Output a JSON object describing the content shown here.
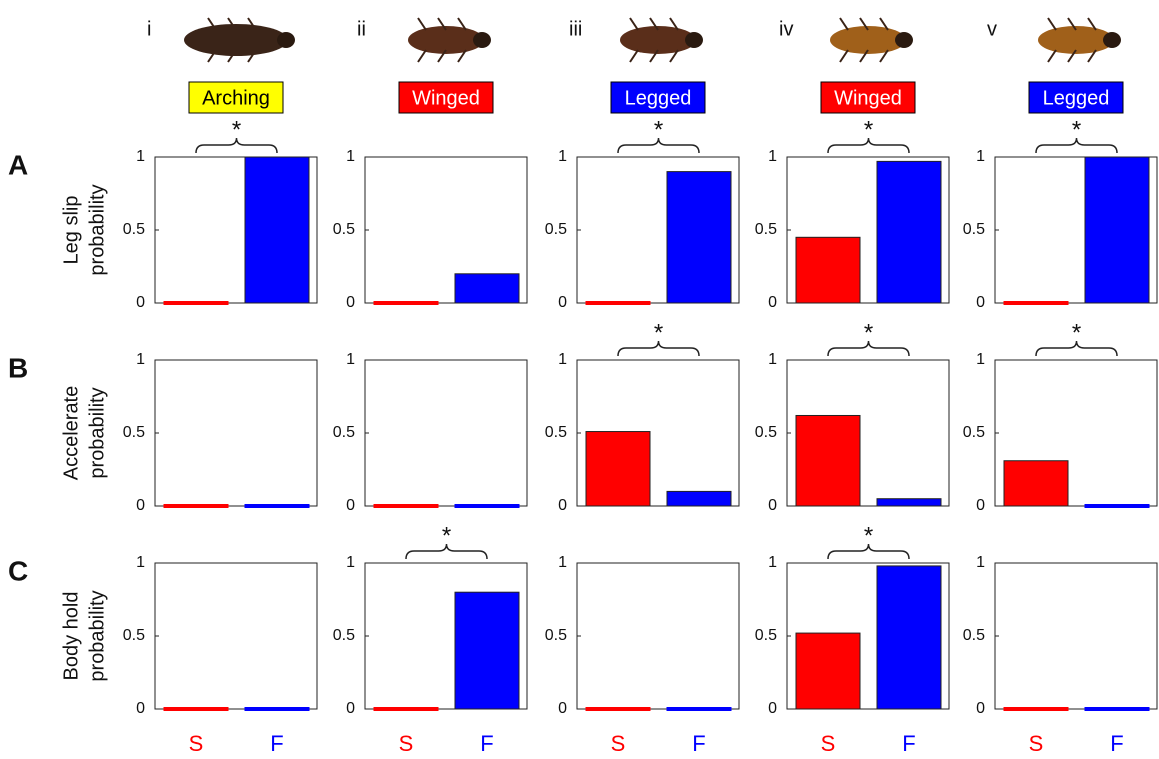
{
  "categories": [
    "S",
    "F"
  ],
  "colors": [
    "#ff0000",
    "#0000ff"
  ],
  "columns": [
    {
      "numeral": "i",
      "label": "Arching",
      "label_color": "#ffff00",
      "text_color": "#000000"
    },
    {
      "numeral": "ii",
      "label": "Winged",
      "label_color": "#ff0000",
      "text_color": "#ffffff"
    },
    {
      "numeral": "iii",
      "label": "Legged",
      "label_color": "#0000ff",
      "text_color": "#ffffff"
    },
    {
      "numeral": "iv",
      "label": "Winged",
      "label_color": "#ff0000",
      "text_color": "#ffffff"
    },
    {
      "numeral": "v",
      "label": "Legged",
      "label_color": "#0000ff",
      "text_color": "#ffffff"
    }
  ],
  "rows": [
    {
      "letter": "A",
      "ylabel": [
        "Leg slip",
        "probability"
      ]
    },
    {
      "letter": "B",
      "ylabel": [
        "Accelerate",
        "probability"
      ]
    },
    {
      "letter": "C",
      "ylabel": [
        "Body hold",
        "probability"
      ]
    }
  ],
  "chart_data": [
    {
      "type": "bar",
      "values": [
        0,
        1
      ],
      "ylim": [
        0,
        1
      ],
      "yticks": [
        0,
        0.5,
        1
      ],
      "annotation": "*"
    },
    {
      "type": "bar",
      "values": [
        0,
        0.2
      ],
      "ylim": [
        0,
        1
      ],
      "yticks": [
        0,
        0.5,
        1
      ]
    },
    {
      "type": "bar",
      "values": [
        0,
        0.9
      ],
      "ylim": [
        0,
        1
      ],
      "yticks": [
        0,
        0.5,
        1
      ],
      "annotation": "*"
    },
    {
      "type": "bar",
      "values": [
        0.45,
        0.97
      ],
      "ylim": [
        0,
        1
      ],
      "yticks": [
        0,
        0.5,
        1
      ],
      "annotation": "*"
    },
    {
      "type": "bar",
      "values": [
        0,
        1
      ],
      "ylim": [
        0,
        1
      ],
      "yticks": [
        0,
        0.5,
        1
      ],
      "annotation": "*"
    },
    {
      "type": "bar",
      "values": [
        0,
        0
      ],
      "ylim": [
        0,
        1
      ],
      "yticks": [
        0,
        0.5,
        1
      ]
    },
    {
      "type": "bar",
      "values": [
        0,
        0
      ],
      "ylim": [
        0,
        1
      ],
      "yticks": [
        0,
        0.5,
        1
      ]
    },
    {
      "type": "bar",
      "values": [
        0.51,
        0.1
      ],
      "ylim": [
        0,
        1
      ],
      "yticks": [
        0,
        0.5,
        1
      ],
      "annotation": "*"
    },
    {
      "type": "bar",
      "values": [
        0.62,
        0.05
      ],
      "ylim": [
        0,
        1
      ],
      "yticks": [
        0,
        0.5,
        1
      ],
      "annotation": "*"
    },
    {
      "type": "bar",
      "values": [
        0.31,
        0
      ],
      "ylim": [
        0,
        1
      ],
      "yticks": [
        0,
        0.5,
        1
      ],
      "annotation": "*"
    },
    {
      "type": "bar",
      "values": [
        0,
        0
      ],
      "ylim": [
        0,
        1
      ],
      "yticks": [
        0,
        0.5,
        1
      ]
    },
    {
      "type": "bar",
      "values": [
        0,
        0.8
      ],
      "ylim": [
        0,
        1
      ],
      "yticks": [
        0,
        0.5,
        1
      ],
      "annotation": "*"
    },
    {
      "type": "bar",
      "values": [
        0,
        0
      ],
      "ylim": [
        0,
        1
      ],
      "yticks": [
        0,
        0.5,
        1
      ]
    },
    {
      "type": "bar",
      "values": [
        0.52,
        0.98
      ],
      "ylim": [
        0,
        1
      ],
      "yticks": [
        0,
        0.5,
        1
      ],
      "annotation": "*"
    },
    {
      "type": "bar",
      "values": [
        0,
        0
      ],
      "ylim": [
        0,
        1
      ],
      "yticks": [
        0,
        0.5,
        1
      ]
    }
  ]
}
